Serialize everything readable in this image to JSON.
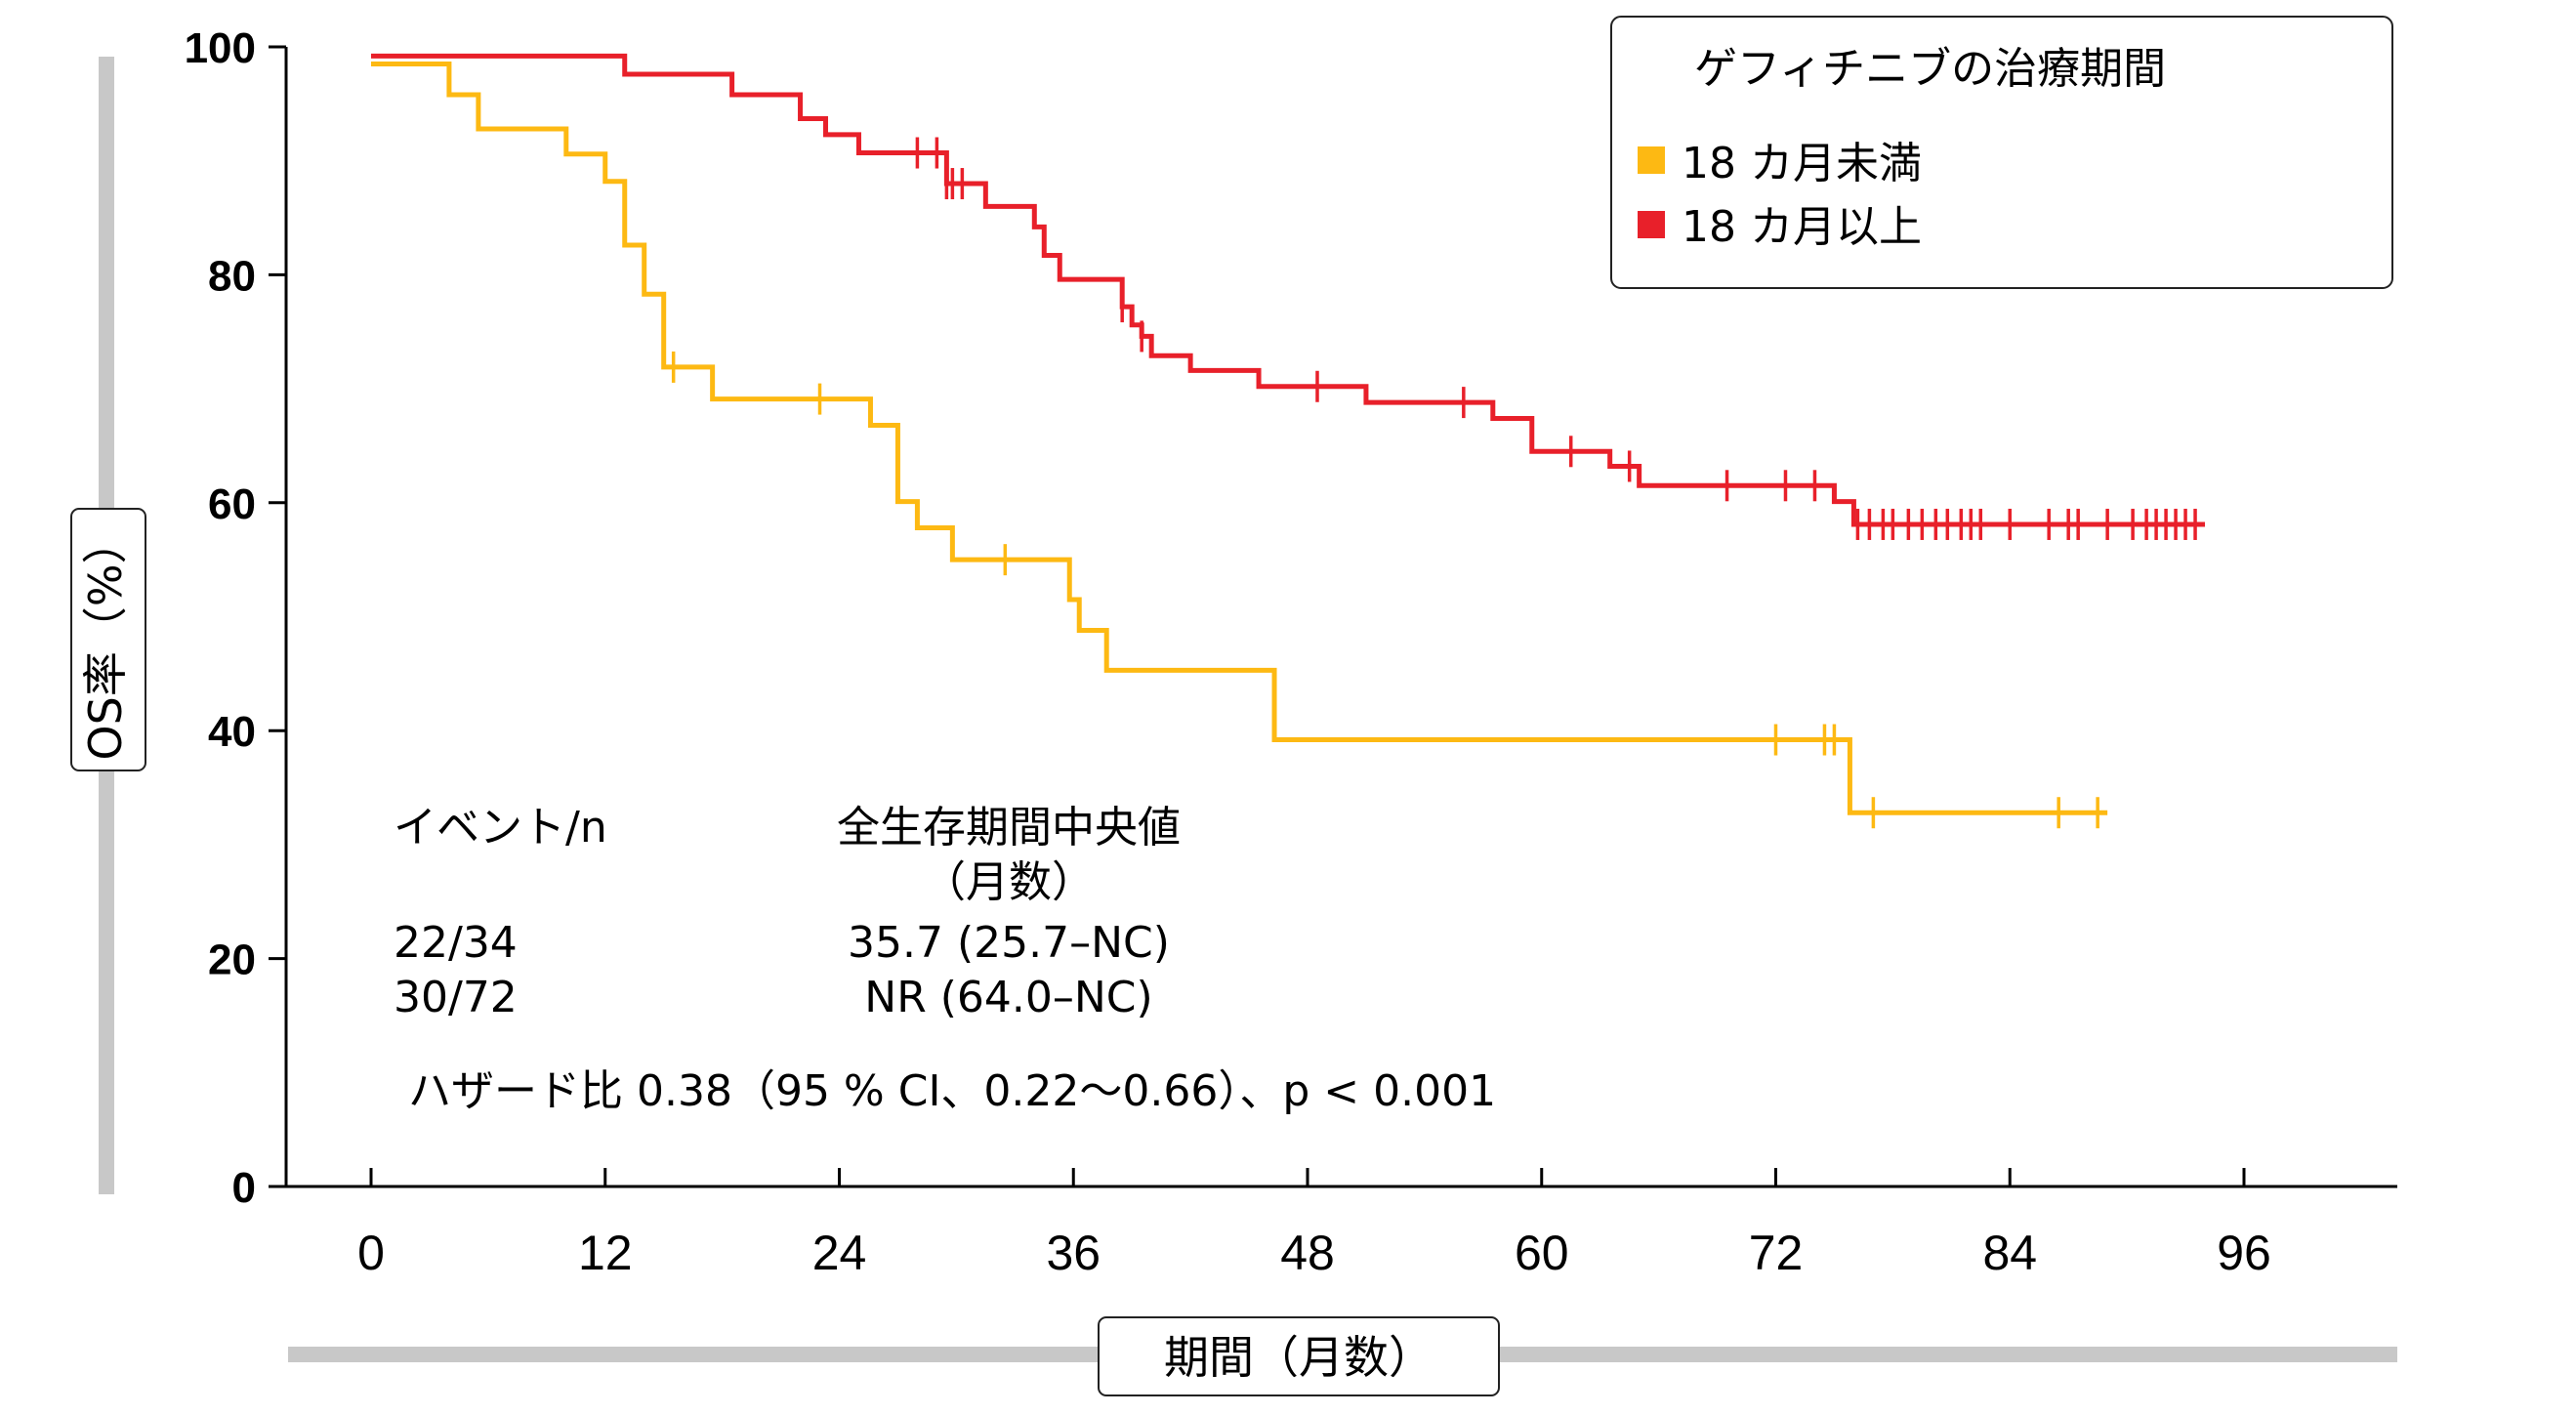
{
  "chart_data": {
    "type": "line",
    "ylabel": "OS率（%）",
    "xlabel": "期間（月数）",
    "xticks": [
      "0",
      "12",
      "24",
      "36",
      "48",
      "60",
      "72",
      "84",
      "96"
    ],
    "yticks": [
      "0",
      "20",
      "40",
      "60",
      "80",
      "100"
    ],
    "xlim": [
      0,
      96
    ],
    "ylim": [
      0,
      100
    ],
    "legend": {
      "title": "ゲフィチニブの治療期間",
      "position": "top-right",
      "entries": [
        "18 カ月未満",
        "18 カ月以上"
      ]
    },
    "series": [
      {
        "name": "18 カ月未満",
        "color": "#FDB913",
        "steps": [
          [
            0,
            98.5
          ],
          [
            4,
            95.8
          ],
          [
            5.5,
            92.8
          ],
          [
            10,
            90.6
          ],
          [
            12,
            88.2
          ],
          [
            13,
            82.6
          ],
          [
            14,
            78.3
          ],
          [
            15,
            71.9
          ],
          [
            17.5,
            69.1
          ],
          [
            25.6,
            66.8
          ],
          [
            27,
            60.1
          ],
          [
            28,
            57.8
          ],
          [
            29.8,
            55.0
          ],
          [
            35.8,
            51.5
          ],
          [
            36.3,
            48.8
          ],
          [
            37.7,
            45.3
          ],
          [
            46.3,
            39.2
          ],
          [
            75.8,
            32.8
          ],
          [
            89,
            32.8
          ]
        ],
        "censored": [
          15.5,
          23,
          32.5,
          72,
          74.5,
          75,
          77,
          86.5,
          88.5
        ]
      },
      {
        "name": "18 カ月以上",
        "color": "#E8202A",
        "steps": [
          [
            0,
            99.2
          ],
          [
            13,
            97.6
          ],
          [
            18.5,
            95.8
          ],
          [
            22,
            93.7
          ],
          [
            23.3,
            92.3
          ],
          [
            25,
            90.7
          ],
          [
            29.5,
            88.0
          ],
          [
            31.5,
            86.0
          ],
          [
            34,
            84.2
          ],
          [
            34.5,
            81.7
          ],
          [
            35.3,
            79.6
          ],
          [
            38.5,
            77.2
          ],
          [
            39,
            75.6
          ],
          [
            39.5,
            74.6
          ],
          [
            40,
            72.9
          ],
          [
            42,
            71.6
          ],
          [
            45.5,
            70.2
          ],
          [
            51,
            68.8
          ],
          [
            57.5,
            67.4
          ],
          [
            59.5,
            64.5
          ],
          [
            63.5,
            63.2
          ],
          [
            65,
            61.5
          ],
          [
            75,
            60.1
          ],
          [
            76,
            58.1
          ],
          [
            94,
            58.1
          ]
        ],
        "censored": [
          28,
          29,
          29.5,
          29.8,
          30.3,
          38.5,
          39.5,
          48.5,
          56,
          61.5,
          64.5,
          69.5,
          72.5,
          74,
          76.2,
          76.8,
          77.5,
          78,
          78.8,
          79.5,
          80.2,
          80.8,
          81.5,
          82,
          82.5,
          84,
          86,
          87,
          87.5,
          89,
          90.3,
          91,
          91.5,
          92,
          92.5,
          93,
          93.5
        ]
      }
    ],
    "annotations": {
      "event_header": "イベント/n",
      "median_header_line1": "全生存期間中央値",
      "median_header_line2": "（月数）",
      "rows": [
        {
          "events": "22/34",
          "median": "35.7 (25.7–NC)"
        },
        {
          "events": "30/72",
          "median": "NR (64.0–NC)"
        }
      ],
      "hazard": "ハザード比 0.38（95 % CI、0.22〜0.66）、p < 0.001"
    }
  }
}
